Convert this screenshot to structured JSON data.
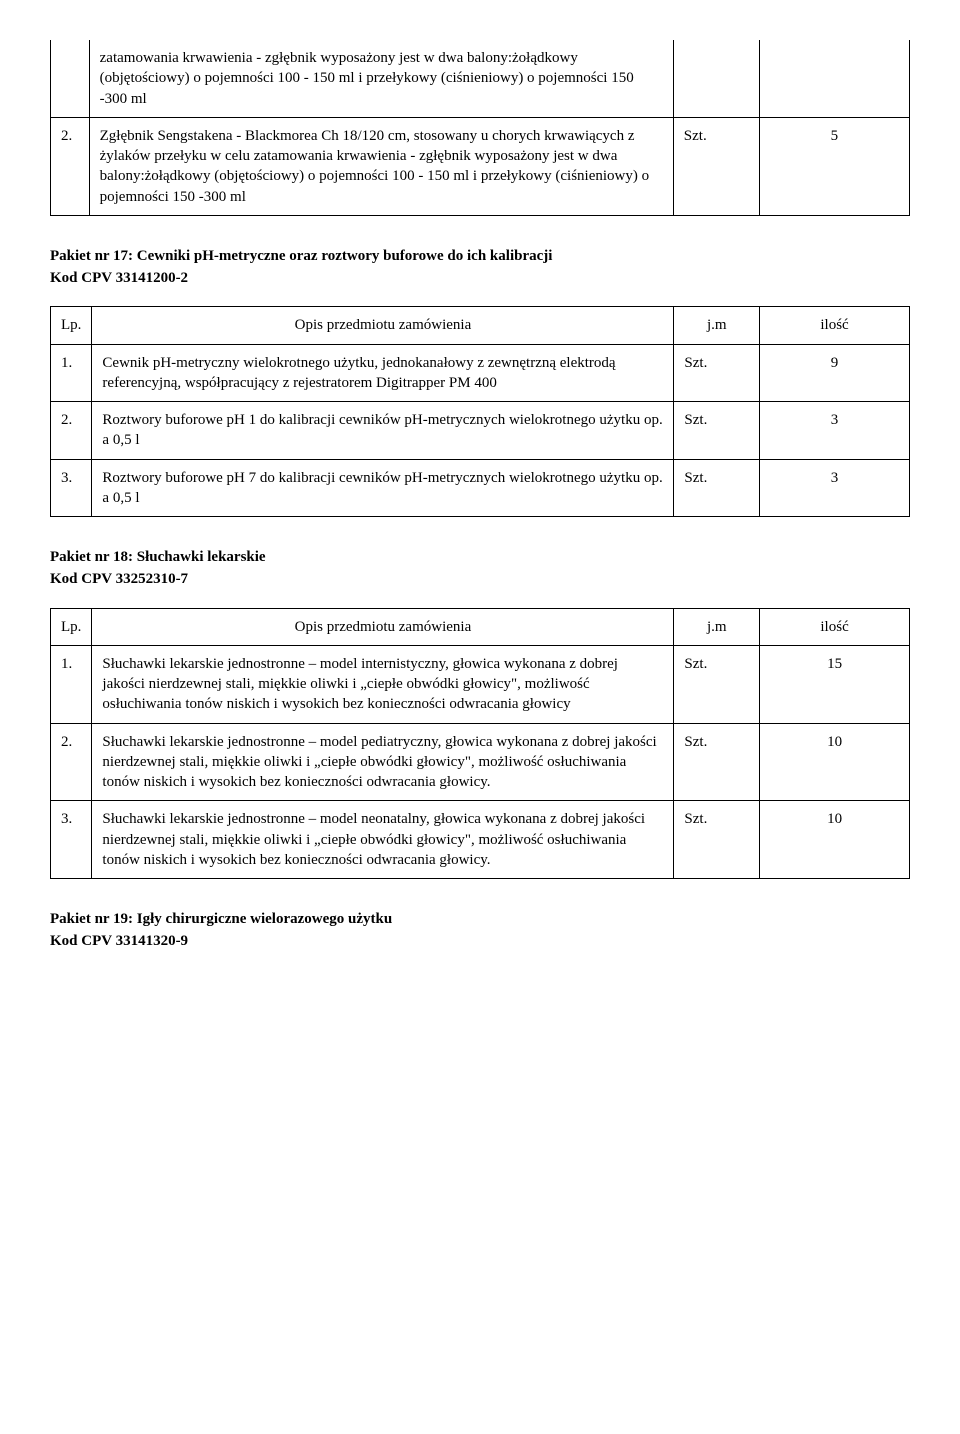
{
  "table0": {
    "rows": [
      {
        "num": "",
        "desc": "zatamowania krwawienia - zgłębnik wyposażony jest w dwa balony:żołądkowy (objętościowy) o pojemności 100 - 150 ml i przełykowy (ciśnieniowy) o pojemności 150 -300 ml",
        "unit": "",
        "qty": ""
      },
      {
        "num": "2.",
        "desc": "Zgłębnik Sengstakena - Blackmorea Ch 18/120 cm, stosowany u chorych krwawiących z żylaków przełyku w celu zatamowania krwawienia - zgłębnik wyposażony jest w dwa balony:żołądkowy (objętościowy) o pojemności 100 - 150 ml i przełykowy (ciśnieniowy) o pojemności 150 -300 ml",
        "unit": "Szt.",
        "qty": "5"
      }
    ]
  },
  "section17": {
    "title": "Pakiet nr 17: Cewniki pH-metryczne oraz roztwory buforowe do ich kalibracji",
    "code": "Kod CPV 33141200-2"
  },
  "table17": {
    "header": {
      "lp": "Lp.",
      "desc": "Opis przedmiotu zamówienia",
      "unit": "j.m",
      "qty": "ilość"
    },
    "rows": [
      {
        "num": "1.",
        "desc": "Cewnik pH-metryczny wielokrotnego użytku, jednokanałowy z zewnętrzną elektrodą referencyjną, współpracujący z rejestratorem Digitrapper PM 400",
        "unit": "Szt.",
        "qty": "9"
      },
      {
        "num": "2.",
        "desc": "Roztwory buforowe pH 1 do kalibracji cewników pH-metrycznych wielokrotnego użytku op. a 0,5 l",
        "unit": "Szt.",
        "qty": "3"
      },
      {
        "num": "3.",
        "desc": "Roztwory buforowe pH 7 do kalibracji cewników pH-metrycznych wielokrotnego użytku op. a 0,5 l",
        "unit": "Szt.",
        "qty": "3"
      }
    ]
  },
  "section18": {
    "title": "Pakiet nr 18: Słuchawki lekarskie",
    "code": "Kod CPV 33252310-7"
  },
  "table18": {
    "header": {
      "lp": "Lp.",
      "desc": "Opis przedmiotu zamówienia",
      "unit": "j.m",
      "qty": "ilość"
    },
    "rows": [
      {
        "num": "1.",
        "desc": "Słuchawki lekarskie jednostronne – model internistyczny, głowica wykonana z dobrej jakości nierdzewnej stali, miękkie oliwki i „ciepłe obwódki głowicy\", możliwość osłuchiwania tonów niskich i wysokich bez konieczności odwracania głowicy",
        "unit": "Szt.",
        "qty": "15"
      },
      {
        "num": "2.",
        "desc": "Słuchawki lekarskie jednostronne – model pediatryczny, głowica wykonana z dobrej jakości nierdzewnej stali, miękkie oliwki i „ciepłe obwódki głowicy\", możliwość osłuchiwania tonów niskich i wysokich bez konieczności odwracania głowicy.",
        "unit": "Szt.",
        "qty": "10"
      },
      {
        "num": "3.",
        "desc": "Słuchawki lekarskie jednostronne – model neonatalny, głowica wykonana z dobrej jakości nierdzewnej stali, miękkie oliwki i „ciepłe obwódki głowicy\", możliwość osłuchiwania tonów niskich i wysokich bez konieczności odwracania głowicy.",
        "unit": "Szt.",
        "qty": "10"
      }
    ]
  },
  "section19": {
    "title": "Pakiet nr 19: Igły chirurgiczne wielorazowego użytku",
    "code": "Kod CPV 33141320-9"
  }
}
